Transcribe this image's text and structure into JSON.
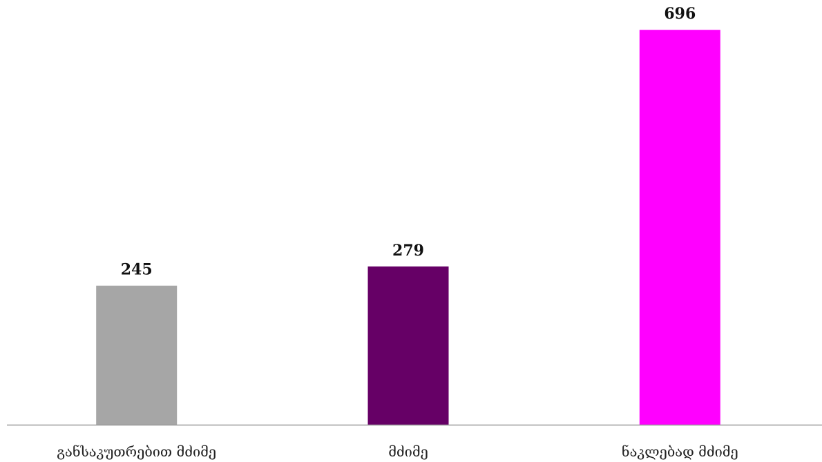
{
  "chart_data": {
    "type": "bar",
    "categories": [
      "განსაკუთრებით მძიმე",
      "მძიმე",
      "ნაკლებად მძიმე"
    ],
    "values": [
      245,
      279,
      696
    ],
    "colors": [
      "#a6a6a6",
      "#660066",
      "#ff00ff"
    ],
    "axis_color": "#9a9a9a",
    "ylim": [
      0,
      740
    ],
    "grid": false,
    "legend": "none",
    "data_labels": true
  }
}
